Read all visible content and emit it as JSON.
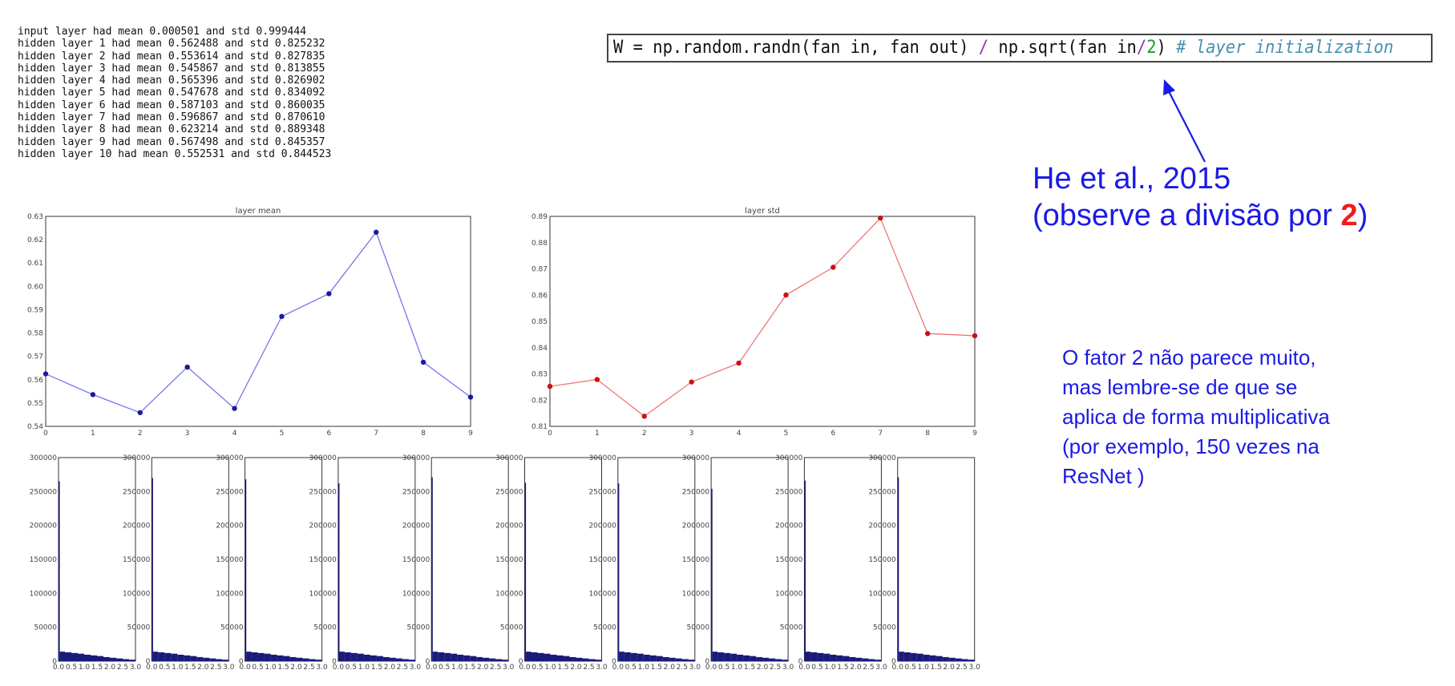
{
  "log_lines": [
    "input layer had mean 0.000501 and std 0.999444",
    "hidden layer 1 had mean 0.562488 and std 0.825232",
    "hidden layer 2 had mean 0.553614 and std 0.827835",
    "hidden layer 3 had mean 0.545867 and std 0.813855",
    "hidden layer 4 had mean 0.565396 and std 0.826902",
    "hidden layer 5 had mean 0.547678 and std 0.834092",
    "hidden layer 6 had mean 0.587103 and std 0.860035",
    "hidden layer 7 had mean 0.596867 and std 0.870610",
    "hidden layer 8 had mean 0.623214 and std 0.889348",
    "hidden layer 9 had mean 0.567498 and std 0.845357",
    "hidden layer 10 had mean 0.552531 and std 0.844523"
  ],
  "code": {
    "part1": "W = np.random.randn(fan in, fan out) ",
    "op": "/",
    "part2": " np.sqrt(fan in",
    "op2": "/",
    "num": "2",
    "part3": ") ",
    "comment": "# layer initialization"
  },
  "citation": {
    "line1": "He et al., 2015",
    "line2_pre": "(observe a divisão por ",
    "line2_accent": "2",
    "line2_post": ")"
  },
  "note": {
    "lines": [
      "O fator 2 não parece muito,",
      "mas lembre-se de que se",
      "aplica de forma multiplicativa",
      "(por exemplo, 150 vezes na",
      "ResNet )"
    ]
  },
  "colors": {
    "mean_line": "#7777ee",
    "mean_marker": "#1a1a9a",
    "std_line": "#ee7777",
    "std_marker": "#cc1111",
    "histogram": "#1a1a7a",
    "annotation": "#1a1ae6",
    "accent": "#ee1c1c"
  },
  "chart_data": [
    {
      "type": "line",
      "title": "layer mean",
      "x": [
        0,
        1,
        2,
        3,
        4,
        5,
        6,
        7,
        8,
        9
      ],
      "values": [
        0.562488,
        0.553614,
        0.545867,
        0.565396,
        0.547678,
        0.587103,
        0.596867,
        0.623214,
        0.567498,
        0.552531
      ],
      "xlim": [
        0,
        9
      ],
      "ylim": [
        0.54,
        0.63
      ],
      "xticks": [
        "0",
        "1",
        "2",
        "3",
        "4",
        "5",
        "6",
        "7",
        "8",
        "9"
      ],
      "yticks": [
        "0.54",
        "0.55",
        "0.56",
        "0.57",
        "0.58",
        "0.59",
        "0.60",
        "0.61",
        "0.62",
        "0.63"
      ]
    },
    {
      "type": "line",
      "title": "layer std",
      "x": [
        0,
        1,
        2,
        3,
        4,
        5,
        6,
        7,
        8,
        9
      ],
      "values": [
        0.825232,
        0.827835,
        0.813855,
        0.826902,
        0.834092,
        0.860035,
        0.87061,
        0.889348,
        0.845357,
        0.844523
      ],
      "xlim": [
        0,
        9
      ],
      "ylim": [
        0.81,
        0.89
      ],
      "xticks": [
        "0",
        "1",
        "2",
        "3",
        "4",
        "5",
        "6",
        "7",
        "8",
        "9"
      ],
      "yticks": [
        "0.81",
        "0.82",
        "0.83",
        "0.84",
        "0.85",
        "0.86",
        "0.87",
        "0.88",
        "0.89"
      ]
    },
    {
      "type": "bar",
      "subtype": "histogram-grid",
      "panels": 10,
      "ylim": [
        0,
        300000
      ],
      "yticks": [
        "0",
        "50000",
        "100000",
        "150000",
        "200000",
        "250000",
        "300000"
      ],
      "xticks": [
        "0.0",
        "0.5",
        "1.0",
        "1.5",
        "2.0",
        "2.5",
        "3.0"
      ],
      "bin_edges": [
        0.0,
        0.05,
        0.25,
        0.5,
        0.75,
        1.0,
        1.25,
        1.5,
        1.75,
        2.0,
        2.25,
        2.5,
        2.75,
        3.0
      ],
      "first_bin_values": [
        265000,
        270000,
        268000,
        262000,
        271000,
        263000,
        262000,
        254000,
        266000,
        271000
      ],
      "tail_values": [
        14000,
        13000,
        12000,
        11000,
        9500,
        8500,
        7500,
        6000,
        5000,
        4000,
        3000,
        2200
      ]
    }
  ]
}
